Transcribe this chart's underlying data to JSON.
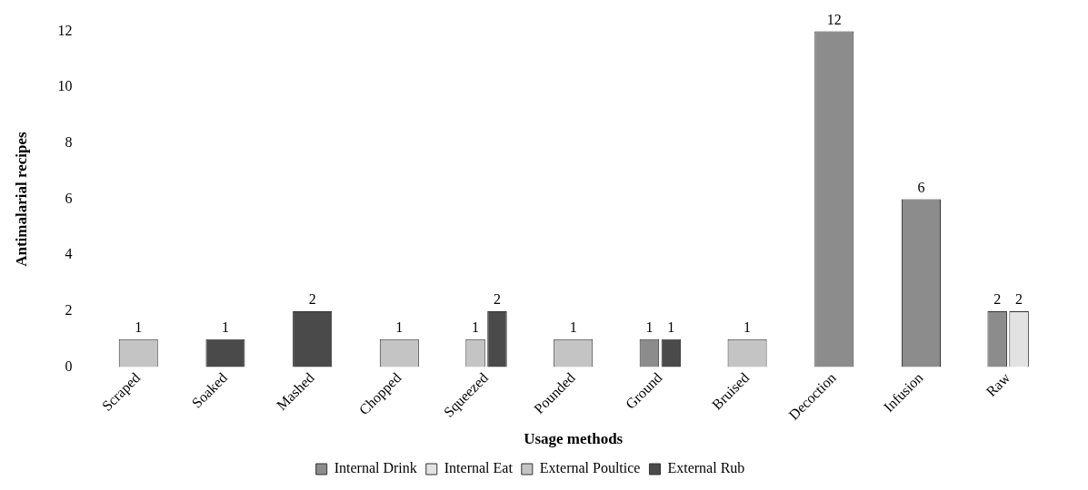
{
  "chart_data": {
    "type": "bar",
    "xlabel": "Usage methods",
    "ylabel": "Antimalarial recipes",
    "categories": [
      "Scraped",
      "Soaked",
      "Mashed",
      "Chopped",
      "Squeezed",
      "Pounded",
      "Ground",
      "Bruised",
      "Decoction",
      "Infusion",
      "Raw"
    ],
    "series": [
      {
        "name": "Internal Drink",
        "color": "#8c8c8c",
        "values": [
          null,
          null,
          null,
          null,
          null,
          null,
          1,
          null,
          12,
          6,
          2
        ]
      },
      {
        "name": "Internal Eat",
        "color": "#e2e2e2",
        "values": [
          null,
          null,
          null,
          null,
          null,
          null,
          null,
          null,
          null,
          null,
          2
        ]
      },
      {
        "name": "External Poultice",
        "color": "#c4c4c4",
        "values": [
          1,
          null,
          null,
          1,
          1,
          1,
          null,
          1,
          null,
          null,
          null
        ]
      },
      {
        "name": "External Rub",
        "color": "#4a4a4a",
        "values": [
          null,
          1,
          2,
          null,
          2,
          null,
          1,
          null,
          null,
          null,
          null
        ]
      }
    ],
    "ylim": [
      0,
      12
    ],
    "yticks": [
      0,
      2,
      4,
      6,
      8,
      10,
      12
    ],
    "grid": false,
    "legend": "bottom",
    "data_labels": true
  }
}
